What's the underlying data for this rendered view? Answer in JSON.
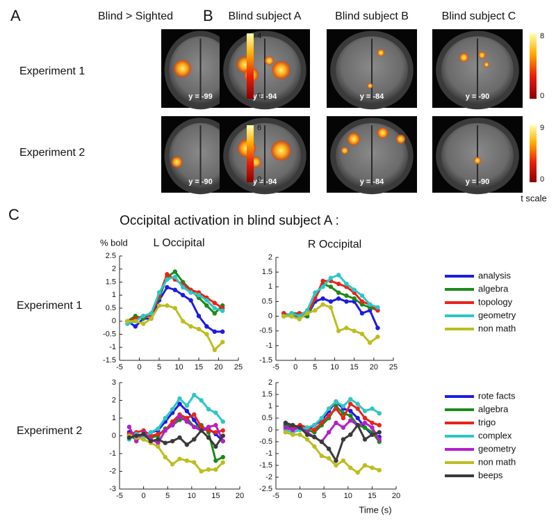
{
  "figure": {
    "panel_a": {
      "letter": "A",
      "title": "Blind > Sighted"
    },
    "panel_b": {
      "letter": "B",
      "subjects": [
        "Blind subject A",
        "Blind subject B",
        "Blind subject C"
      ]
    },
    "rows": [
      "Experiment 1",
      "Experiment 2"
    ],
    "slices": [
      [
        "y = -99",
        "y = -94",
        "y = -84",
        "y = -90"
      ],
      [
        "y = -90",
        "y = -94",
        "y = -84",
        "y = -90"
      ]
    ],
    "colorbars": [
      [
        {
          "max": 4,
          "min": 0
        },
        {
          "max": 8,
          "min": 0
        }
      ],
      [
        {
          "max": 6,
          "min": 0
        },
        {
          "max": 9,
          "min": 0
        }
      ]
    ],
    "colorbar_label": "t scale",
    "panel_c": {
      "letter": "C",
      "title": "Occipital activation in blind subject A :",
      "rows": [
        "Experiment 1",
        "Experiment 2"
      ]
    }
  },
  "chart_data": [
    {
      "type": "line",
      "title": "L Occipital",
      "ylabel": "% bold",
      "x": [
        -3,
        -1,
        1,
        3,
        5,
        7,
        9,
        11,
        13,
        15,
        17,
        19,
        21
      ],
      "xlim": [
        -5,
        25
      ],
      "xticks": [
        -5,
        0,
        5,
        10,
        15,
        20,
        25
      ],
      "ylim": [
        -1.5,
        2.5
      ],
      "yticks": [
        -1.5,
        -1,
        -0.5,
        0,
        0.5,
        1,
        1.5,
        2,
        2.5
      ],
      "series": [
        {
          "color": "#1c1ce0",
          "values": [
            0,
            -0.2,
            0.1,
            0.1,
            0.8,
            1.3,
            1.2,
            1.0,
            0.8,
            0.2,
            -0.2,
            -0.4,
            -0.4
          ]
        },
        {
          "color": "#1b8a1b",
          "values": [
            0,
            0.2,
            0.1,
            0.3,
            0.9,
            1.7,
            1.9,
            1.5,
            1.2,
            0.9,
            0.6,
            0.3,
            0.6
          ]
        },
        {
          "color": "#e6251b",
          "values": [
            0,
            0.1,
            0.2,
            0.2,
            1.0,
            1.8,
            1.6,
            1.4,
            1.2,
            1.1,
            0.9,
            0.7,
            0.5
          ]
        },
        {
          "color": "#2ec6c6",
          "values": [
            -0.1,
            0.0,
            0.2,
            0.3,
            1.1,
            1.6,
            1.7,
            1.3,
            1.1,
            1.0,
            0.8,
            0.5,
            0.4
          ]
        },
        {
          "color": "#bdbd1f",
          "values": [
            0,
            0,
            -0.1,
            0.1,
            0.6,
            0.6,
            0.5,
            0.0,
            -0.2,
            -0.3,
            -0.5,
            -1.1,
            -0.8
          ]
        }
      ]
    },
    {
      "type": "line",
      "title": "R Occipital",
      "legend": "right",
      "x": [
        -3,
        -1,
        1,
        3,
        5,
        7,
        9,
        11,
        13,
        15,
        17,
        19,
        21
      ],
      "xlim": [
        -5,
        25
      ],
      "xticks": [
        -5,
        0,
        5,
        10,
        15,
        20,
        25
      ],
      "ylim": [
        -1.5,
        2
      ],
      "yticks": [
        -1.5,
        -1,
        -0.5,
        0,
        0.5,
        1,
        1.5,
        2
      ],
      "series": [
        {
          "name": "analysis",
          "color": "#1c1ce0",
          "values": [
            0.1,
            0.0,
            0.0,
            0.0,
            0.5,
            0.6,
            0.5,
            0.6,
            0.5,
            0.5,
            0.1,
            0.2,
            -0.4
          ]
        },
        {
          "name": "algebra",
          "color": "#1b8a1b",
          "values": [
            0.0,
            0.1,
            0.1,
            0.0,
            0.6,
            1.1,
            1.0,
            0.8,
            0.7,
            0.6,
            0.4,
            0.3,
            0.2
          ]
        },
        {
          "name": "topology",
          "color": "#e6251b",
          "values": [
            0.1,
            0.0,
            0.1,
            0.1,
            0.6,
            1.2,
            1.2,
            1.1,
            1.0,
            0.8,
            0.5,
            0.4,
            0.2
          ]
        },
        {
          "name": "geometry",
          "color": "#2ec6c6",
          "values": [
            0.0,
            0.1,
            0.0,
            0.2,
            0.8,
            1.0,
            1.3,
            1.4,
            1.1,
            0.9,
            0.7,
            0.4,
            0.3
          ]
        },
        {
          "name": "non math",
          "color": "#bdbd1f",
          "values": [
            0.0,
            0.0,
            -0.1,
            0.1,
            0.2,
            0.4,
            0.3,
            -0.5,
            -0.4,
            -0.5,
            -0.6,
            -0.9,
            -0.7
          ]
        }
      ]
    },
    {
      "type": "line",
      "x": [
        -3,
        -1.5,
        0,
        1.5,
        3,
        4.5,
        6,
        7.5,
        9,
        10.5,
        12,
        13.5,
        15,
        16.5
      ],
      "xlim": [
        -5,
        20
      ],
      "xticks": [
        -5,
        0,
        5,
        10,
        15,
        20
      ],
      "ylim": [
        -3,
        3
      ],
      "yticks": [
        -3,
        -2,
        -1,
        0,
        1,
        2,
        3
      ],
      "series": [
        {
          "color": "#1c1ce0",
          "values": [
            0.2,
            0.1,
            0,
            0.2,
            0.3,
            0.8,
            1.3,
            1.8,
            1.4,
            0.9,
            0.3,
            0.4,
            0.1,
            -0.3
          ]
        },
        {
          "color": "#1b8a1b",
          "values": [
            0.0,
            -0.2,
            0.1,
            -0.1,
            0,
            0.4,
            0.6,
            0.9,
            1.0,
            0.5,
            0.6,
            0.2,
            -1.4,
            -1.2
          ]
        },
        {
          "color": "#e6251b",
          "values": [
            0.1,
            0.2,
            0.3,
            0,
            0.1,
            0.3,
            0.8,
            1.2,
            1.0,
            1.2,
            0.5,
            0.3,
            0.2,
            0.3
          ]
        },
        {
          "color": "#2ec6c6",
          "values": [
            -0.2,
            0.1,
            -0.1,
            0.2,
            0.4,
            1.0,
            1.5,
            2.1,
            1.7,
            2.3,
            2.0,
            1.5,
            1.3,
            0.8
          ]
        },
        {
          "color": "#b31fc9",
          "values": [
            0.5,
            -0.3,
            0.2,
            -0.2,
            -0.4,
            0.3,
            0.6,
            1.1,
            0.8,
            0.5,
            0.3,
            0.5,
            0.6,
            -0.3
          ]
        },
        {
          "color": "#bdbd1f",
          "values": [
            0.0,
            -0.1,
            -0.2,
            -0.4,
            -0.6,
            -1.2,
            -1.6,
            -1.3,
            -1.4,
            -1.5,
            -2.0,
            -1.9,
            -1.9,
            -1.5
          ]
        },
        {
          "color": "#3a3a3a",
          "values": [
            -0.1,
            0.0,
            0.1,
            -0.3,
            -0.2,
            -0.4,
            -0.3,
            -0.1,
            -0.5,
            -0.2,
            0.3,
            -0.1,
            -0.6,
            0.0
          ]
        }
      ]
    },
    {
      "type": "line",
      "xlabel": "Time (s)",
      "legend": "right",
      "x": [
        -3,
        -1.5,
        0,
        1.5,
        3,
        4.5,
        6,
        7.5,
        9,
        10.5,
        12,
        13.5,
        15,
        16.5
      ],
      "xlim": [
        -5,
        20
      ],
      "xticks": [
        -5,
        0,
        5,
        10,
        15,
        20
      ],
      "ylim": [
        -2.5,
        2
      ],
      "yticks": [
        -2.5,
        -2,
        -1.5,
        -1,
        -0.5,
        0,
        0.5,
        1,
        1.5,
        2
      ],
      "series": [
        {
          "name": "rote facts",
          "color": "#1c1ce0",
          "values": [
            0.2,
            0.1,
            0.1,
            0.0,
            0.2,
            0.4,
            0.8,
            1.2,
            0.9,
            0.8,
            0.5,
            0.1,
            -0.2,
            -0.3
          ]
        },
        {
          "name": "algebra",
          "color": "#1b8a1b",
          "values": [
            0.2,
            0.2,
            0.1,
            0.0,
            -0.1,
            0.2,
            0.5,
            1.0,
            0.7,
            0.6,
            0.2,
            0.1,
            -0.1,
            -0.5
          ]
        },
        {
          "name": "trigo",
          "color": "#e6251b",
          "values": [
            0.0,
            0.1,
            0.2,
            0.1,
            0,
            0.3,
            0.6,
            0.9,
            0.5,
            1.1,
            0.9,
            0.5,
            0.3,
            0.2
          ]
        },
        {
          "name": "complex",
          "color": "#2ec6c6",
          "values": [
            0.0,
            -0.1,
            0.0,
            0.1,
            0.2,
            0.5,
            0.9,
            1.2,
            1.0,
            1.3,
            1.1,
            0.8,
            0.9,
            0.7
          ]
        },
        {
          "name": "geometry",
          "color": "#b31fc9",
          "values": [
            0.1,
            0.0,
            0.1,
            -0.1,
            -0.3,
            -0.5,
            -0.1,
            0.3,
            0.1,
            0.4,
            0.2,
            0.3,
            0.1,
            -0.4
          ]
        },
        {
          "name": "non math",
          "color": "#bdbd1f",
          "values": [
            -0.1,
            -0.2,
            -0.2,
            -0.4,
            -0.7,
            -1.1,
            -1.2,
            -1.5,
            -1.3,
            -1.6,
            -1.8,
            -1.5,
            -1.6,
            -1.7
          ]
        },
        {
          "name": "beeps",
          "color": "#3a3a3a",
          "values": [
            0.3,
            0.2,
            0.1,
            -0.2,
            -0.3,
            -0.5,
            -0.8,
            -1.3,
            -0.4,
            -0.2,
            0.2,
            -0.4,
            -0.2,
            -0.1
          ]
        }
      ]
    }
  ]
}
